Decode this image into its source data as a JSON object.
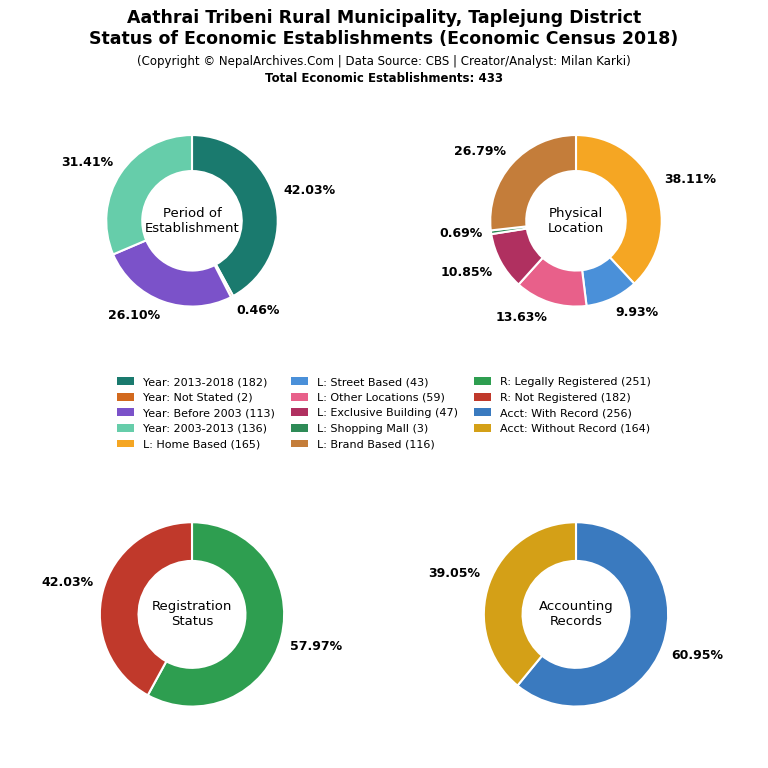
{
  "title": "Aathrai Tribeni Rural Municipality, Taplejung District\nStatus of Economic Establishments (Economic Census 2018)",
  "subtitle": "(Copyright © NepalArchives.Com | Data Source: CBS | Creator/Analyst: Milan Karki)",
  "annotations": [
    "Total Economic Establishments: 433"
  ],
  "legend": "center",
  "chart_data": [
    {
      "type": "pie",
      "title": "Period of\nEstablishment",
      "categories": [
        "Year: 2013-2018 (182)",
        "Year: Not Stated (2)",
        "Year: Before 2003 (113)",
        "Year: 2003-2013 (136)"
      ],
      "values": [
        42.03,
        0.46,
        26.1,
        31.41
      ],
      "value_labels": [
        "42.03%",
        "0.46%",
        "26.10%",
        "31.41%"
      ],
      "colors": [
        "#1a7a6e",
        "#d2691e",
        "#7b52c9",
        "#66cdaa"
      ]
    },
    {
      "type": "pie",
      "title": "Physical\nLocation",
      "categories": [
        "L: Home Based (165)",
        "L: Street Based (43)",
        "L: Other Locations (59)",
        "L: Exclusive Building (47)",
        "L: Shopping Mall (3)",
        "L: Brand Based (116)"
      ],
      "values": [
        38.11,
        9.93,
        13.63,
        10.85,
        0.69,
        26.79
      ],
      "value_labels": [
        "38.11%",
        "9.93%",
        "13.63%",
        "10.85%",
        "0.69%",
        "26.79%"
      ],
      "colors": [
        "#f5a623",
        "#4a90d9",
        "#e8608a",
        "#b03060",
        "#2e8b57",
        "#c47d3a"
      ]
    },
    {
      "type": "pie",
      "title": "Registration\nStatus",
      "categories": [
        "R: Legally Registered (251)",
        "R: Not Registered (182)"
      ],
      "values": [
        57.97,
        42.03
      ],
      "value_labels": [
        "57.97%",
        "42.03%"
      ],
      "colors": [
        "#2e9e50",
        "#c0392b"
      ]
    },
    {
      "type": "pie",
      "title": "Accounting\nRecords",
      "categories": [
        "Acct: With Record (256)",
        "Acct: Without Record (164)"
      ],
      "values": [
        60.95,
        39.05
      ],
      "value_labels": [
        "60.95%",
        "39.05%"
      ],
      "colors": [
        "#3a7abf",
        "#d4a017"
      ]
    }
  ]
}
